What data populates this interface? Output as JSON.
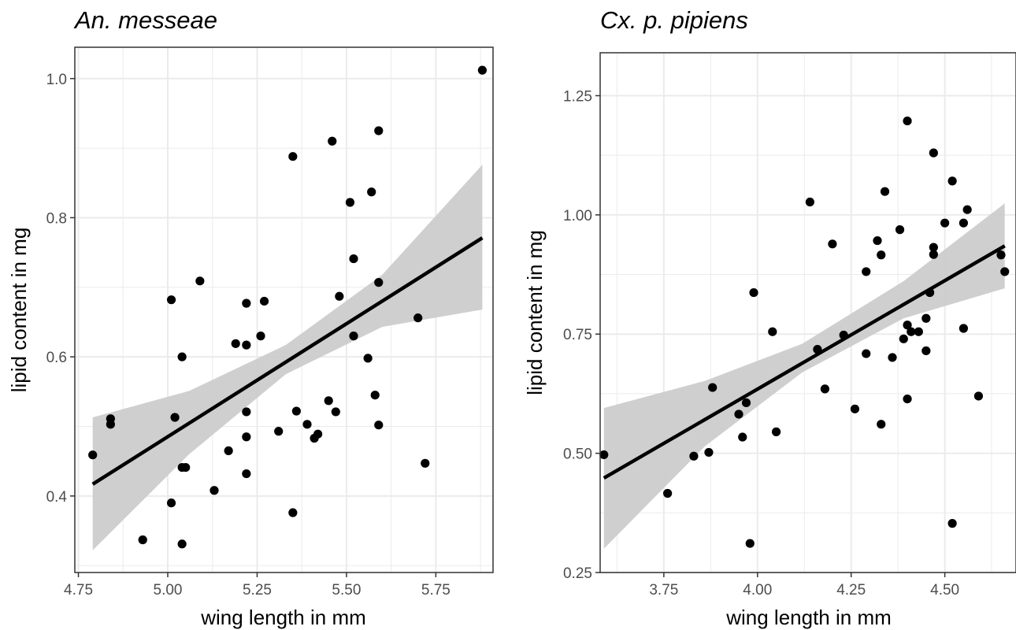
{
  "chart_data": [
    {
      "type": "scatter",
      "title": "An. messeae",
      "xlabel": "wing length in mm",
      "ylabel": "lipid content in mg",
      "xlim": [
        4.74,
        5.91
      ],
      "ylim": [
        0.29,
        1.045
      ],
      "xticks": [
        4.75,
        5.0,
        5.25,
        5.5,
        5.75
      ],
      "xtick_labels": [
        "4.75",
        "5.00",
        "5.25",
        "5.50",
        "5.75"
      ],
      "yticks": [
        0.4,
        0.6,
        0.8,
        1.0
      ],
      "ytick_labels": [
        "0.4",
        "0.6",
        "0.8",
        "1.0"
      ],
      "grid": true,
      "points": [
        {
          "x": 4.79,
          "y": 0.459
        },
        {
          "x": 4.84,
          "y": 0.503
        },
        {
          "x": 4.84,
          "y": 0.511
        },
        {
          "x": 4.93,
          "y": 0.337
        },
        {
          "x": 5.01,
          "y": 0.682
        },
        {
          "x": 5.01,
          "y": 0.39
        },
        {
          "x": 5.02,
          "y": 0.513
        },
        {
          "x": 5.04,
          "y": 0.6
        },
        {
          "x": 5.04,
          "y": 0.331
        },
        {
          "x": 5.04,
          "y": 0.441
        },
        {
          "x": 5.05,
          "y": 0.441
        },
        {
          "x": 5.09,
          "y": 0.709
        },
        {
          "x": 5.13,
          "y": 0.408
        },
        {
          "x": 5.17,
          "y": 0.465
        },
        {
          "x": 5.19,
          "y": 0.619
        },
        {
          "x": 5.22,
          "y": 0.677
        },
        {
          "x": 5.22,
          "y": 0.617
        },
        {
          "x": 5.22,
          "y": 0.485
        },
        {
          "x": 5.22,
          "y": 0.432
        },
        {
          "x": 5.22,
          "y": 0.521
        },
        {
          "x": 5.26,
          "y": 0.63
        },
        {
          "x": 5.27,
          "y": 0.68
        },
        {
          "x": 5.31,
          "y": 0.493
        },
        {
          "x": 5.35,
          "y": 0.888
        },
        {
          "x": 5.35,
          "y": 0.376
        },
        {
          "x": 5.36,
          "y": 0.522
        },
        {
          "x": 5.39,
          "y": 0.503
        },
        {
          "x": 5.41,
          "y": 0.483
        },
        {
          "x": 5.42,
          "y": 0.489
        },
        {
          "x": 5.45,
          "y": 0.537
        },
        {
          "x": 5.46,
          "y": 0.91
        },
        {
          "x": 5.47,
          "y": 0.521
        },
        {
          "x": 5.48,
          "y": 0.687
        },
        {
          "x": 5.51,
          "y": 0.822
        },
        {
          "x": 5.52,
          "y": 0.63
        },
        {
          "x": 5.52,
          "y": 0.741
        },
        {
          "x": 5.56,
          "y": 0.598
        },
        {
          "x": 5.57,
          "y": 0.837
        },
        {
          "x": 5.58,
          "y": 0.545
        },
        {
          "x": 5.59,
          "y": 0.502
        },
        {
          "x": 5.59,
          "y": 0.707
        },
        {
          "x": 5.59,
          "y": 0.925
        },
        {
          "x": 5.7,
          "y": 0.656
        },
        {
          "x": 5.72,
          "y": 0.447
        },
        {
          "x": 5.88,
          "y": 1.012
        }
      ],
      "fit_line": [
        {
          "x": 4.79,
          "y": 0.417
        },
        {
          "x": 5.88,
          "y": 0.771
        }
      ],
      "confidence_band": {
        "x": [
          4.79,
          5.06,
          5.33,
          5.6,
          5.88
        ],
        "lower": [
          0.322,
          0.46,
          0.575,
          0.643,
          0.668
        ],
        "upper": [
          0.513,
          0.551,
          0.617,
          0.718,
          0.876
        ]
      },
      "colors": {
        "points": "#000000",
        "line": "#000000",
        "band": "#cccccc",
        "grid": "#ebebeb",
        "border": "#333333"
      }
    },
    {
      "type": "scatter",
      "title": "Cx. p. pipiens",
      "xlabel": "wing length in mm",
      "ylabel": "lipid content in mg",
      "xlim": [
        3.58,
        4.69
      ],
      "ylim": [
        0.25,
        1.34
      ],
      "xticks": [
        3.75,
        4.0,
        4.25,
        4.5
      ],
      "xtick_labels": [
        "3.75",
        "4.00",
        "4.25",
        "4.50"
      ],
      "yticks": [
        0.25,
        0.5,
        0.75,
        1.0,
        1.25
      ],
      "ytick_labels": [
        "0.25",
        "0.50",
        "0.75",
        "1.00",
        "1.25"
      ],
      "grid": true,
      "points": [
        {
          "x": 3.59,
          "y": 0.497
        },
        {
          "x": 3.76,
          "y": 0.416
        },
        {
          "x": 3.83,
          "y": 0.494
        },
        {
          "x": 3.87,
          "y": 0.502
        },
        {
          "x": 3.88,
          "y": 0.638
        },
        {
          "x": 3.95,
          "y": 0.582
        },
        {
          "x": 3.96,
          "y": 0.534
        },
        {
          "x": 3.97,
          "y": 0.606
        },
        {
          "x": 3.98,
          "y": 0.311
        },
        {
          "x": 3.99,
          "y": 0.837
        },
        {
          "x": 4.04,
          "y": 0.755
        },
        {
          "x": 4.05,
          "y": 0.545
        },
        {
          "x": 4.14,
          "y": 1.027
        },
        {
          "x": 4.16,
          "y": 0.718
        },
        {
          "x": 4.18,
          "y": 0.635
        },
        {
          "x": 4.2,
          "y": 0.939
        },
        {
          "x": 4.23,
          "y": 0.748
        },
        {
          "x": 4.26,
          "y": 0.593
        },
        {
          "x": 4.29,
          "y": 0.881
        },
        {
          "x": 4.29,
          "y": 0.709
        },
        {
          "x": 4.32,
          "y": 0.946
        },
        {
          "x": 4.33,
          "y": 0.916
        },
        {
          "x": 4.33,
          "y": 0.561
        },
        {
          "x": 4.34,
          "y": 1.049
        },
        {
          "x": 4.36,
          "y": 0.701
        },
        {
          "x": 4.38,
          "y": 0.969
        },
        {
          "x": 4.39,
          "y": 0.74
        },
        {
          "x": 4.4,
          "y": 0.769
        },
        {
          "x": 4.4,
          "y": 0.614
        },
        {
          "x": 4.4,
          "y": 1.197
        },
        {
          "x": 4.41,
          "y": 0.755
        },
        {
          "x": 4.43,
          "y": 0.755
        },
        {
          "x": 4.45,
          "y": 0.783
        },
        {
          "x": 4.45,
          "y": 0.715
        },
        {
          "x": 4.46,
          "y": 0.837
        },
        {
          "x": 4.47,
          "y": 0.932
        },
        {
          "x": 4.47,
          "y": 0.917
        },
        {
          "x": 4.47,
          "y": 1.13
        },
        {
          "x": 4.5,
          "y": 0.983
        },
        {
          "x": 4.52,
          "y": 1.071
        },
        {
          "x": 4.52,
          "y": 0.353
        },
        {
          "x": 4.55,
          "y": 0.983
        },
        {
          "x": 4.55,
          "y": 0.762
        },
        {
          "x": 4.56,
          "y": 1.011
        },
        {
          "x": 4.59,
          "y": 0.62
        },
        {
          "x": 4.65,
          "y": 0.916
        },
        {
          "x": 4.66,
          "y": 0.881
        }
      ],
      "fit_line": [
        {
          "x": 3.59,
          "y": 0.448
        },
        {
          "x": 4.66,
          "y": 0.935
        }
      ],
      "confidence_band": {
        "x": [
          3.59,
          3.86,
          4.12,
          4.39,
          4.66
        ],
        "lower": [
          0.3,
          0.515,
          0.67,
          0.783,
          0.846
        ],
        "upper": [
          0.595,
          0.652,
          0.73,
          0.861,
          1.024
        ]
      },
      "colors": {
        "points": "#000000",
        "line": "#000000",
        "band": "#cccccc",
        "grid": "#ebebeb",
        "border": "#333333"
      }
    }
  ]
}
